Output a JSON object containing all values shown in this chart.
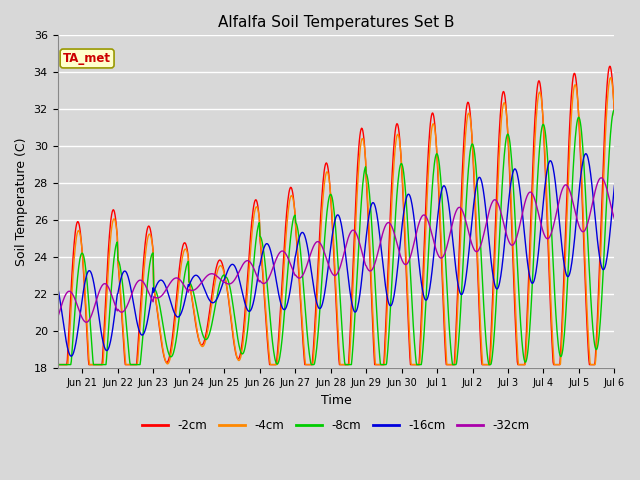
{
  "title": "Alfalfa Soil Temperatures Set B",
  "xlabel": "Time",
  "ylabel": "Soil Temperature (C)",
  "ylim": [
    18,
    36
  ],
  "xlim": [
    0.3,
    15.7
  ],
  "colors": {
    "-2cm": "#ff0000",
    "-4cm": "#ff8800",
    "-8cm": "#00cc00",
    "-16cm": "#0000dd",
    "-32cm": "#aa00aa"
  },
  "legend_label": "TA_met",
  "legend_box_facecolor": "#ffffcc",
  "legend_box_edgecolor": "#999900",
  "background_color": "#d8d8d8",
  "plot_bg_color": "#d8d8d8",
  "tick_labels": [
    "Jun 21",
    "Jun 22",
    "Jun 23",
    "Jun 24",
    "Jun 25",
    "Jun 26",
    "Jun 27",
    "Jun 28",
    "Jun 29",
    "Jun 30",
    "Jul 1",
    "Jul 2",
    "Jul 3",
    "Jul 4",
    "Jul 5",
    "Jul 6"
  ],
  "figsize": [
    6.4,
    4.8
  ],
  "dpi": 100
}
